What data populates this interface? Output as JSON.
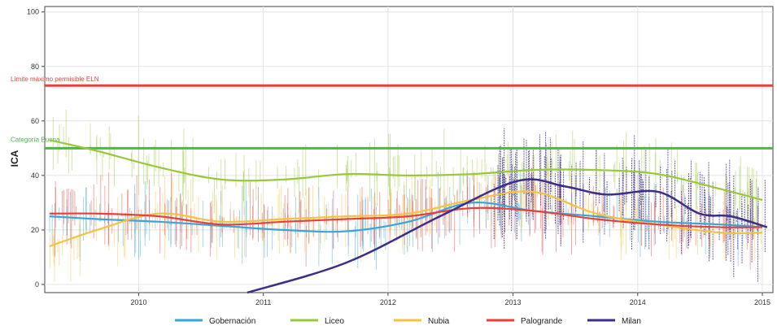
{
  "chart_data": {
    "type": "line",
    "title": "",
    "xlabel": "",
    "ylabel": "ICA",
    "xlim": [
      "2009-04-01",
      "2015-02-01"
    ],
    "ylim": [
      -3,
      102
    ],
    "yticks": [
      0,
      20,
      40,
      60,
      80,
      100
    ],
    "xticks": [
      "2010",
      "2011",
      "2012",
      "2013",
      "2014",
      "2015"
    ],
    "grid": true,
    "legend_position": "bottom",
    "reference_lines": [
      {
        "label": "Límite máximo permisible ELN",
        "y": 73,
        "color": "#e8413a"
      },
      {
        "label": "Categoría Buena",
        "y": 50,
        "color": "#4cb848"
      }
    ],
    "series": [
      {
        "name": "Gobernación",
        "color": "#3aa6d8",
        "x": [
          "2009-04-15",
          "2009-09-01",
          "2010-03-01",
          "2010-09-01",
          "2011-03-01",
          "2011-09-01",
          "2012-03-01",
          "2012-09-01",
          "2013-03-01",
          "2013-09-01",
          "2014-03-01",
          "2014-09-01",
          "2015-01-01"
        ],
        "y": [
          25,
          24,
          23,
          21.5,
          20,
          19.5,
          23,
          30,
          27,
          25,
          23,
          22,
          21
        ]
      },
      {
        "name": "Liceo",
        "color": "#9ac83c",
        "x": [
          "2009-04-15",
          "2009-09-01",
          "2010-03-01",
          "2010-09-01",
          "2011-03-01",
          "2011-09-01",
          "2012-03-01",
          "2012-09-01",
          "2013-03-01",
          "2013-09-01",
          "2014-03-01",
          "2014-09-01",
          "2015-01-01"
        ],
        "y": [
          53,
          49,
          43,
          38.5,
          38.5,
          40.5,
          40,
          40.5,
          42,
          42,
          40.5,
          35,
          31
        ]
      },
      {
        "name": "Nubia",
        "color": "#f5c242",
        "x": [
          "2009-04-15",
          "2009-09-01",
          "2010-03-01",
          "2010-09-01",
          "2011-03-01",
          "2011-09-01",
          "2012-03-01",
          "2012-09-01",
          "2013-03-01",
          "2013-09-01",
          "2014-03-01",
          "2014-09-01",
          "2015-01-01"
        ],
        "y": [
          14,
          20,
          26,
          23,
          24,
          25,
          26,
          31,
          34,
          26,
          22,
          19,
          19
        ]
      },
      {
        "name": "Palogrande",
        "color": "#e8413a",
        "x": [
          "2009-04-15",
          "2009-09-01",
          "2010-03-01",
          "2010-09-01",
          "2011-03-01",
          "2011-09-01",
          "2012-03-01",
          "2012-09-01",
          "2013-03-01",
          "2013-09-01",
          "2014-03-01",
          "2014-09-01",
          "2015-01-01"
        ],
        "y": [
          26,
          26,
          25,
          22,
          23,
          24,
          25,
          28,
          27,
          24,
          22,
          21,
          21
        ]
      },
      {
        "name": "Milan",
        "color": "#3d2e88",
        "x": [
          "2010-11-15",
          "2011-09-01",
          "2012-06-01",
          "2013-01-15",
          "2013-06-01",
          "2013-10-01",
          "2014-03-01",
          "2014-07-01",
          "2014-10-01",
          "2015-01-15"
        ],
        "y": [
          -3,
          8,
          25,
          38,
          36,
          33,
          34,
          26,
          25,
          21
        ]
      }
    ]
  }
}
